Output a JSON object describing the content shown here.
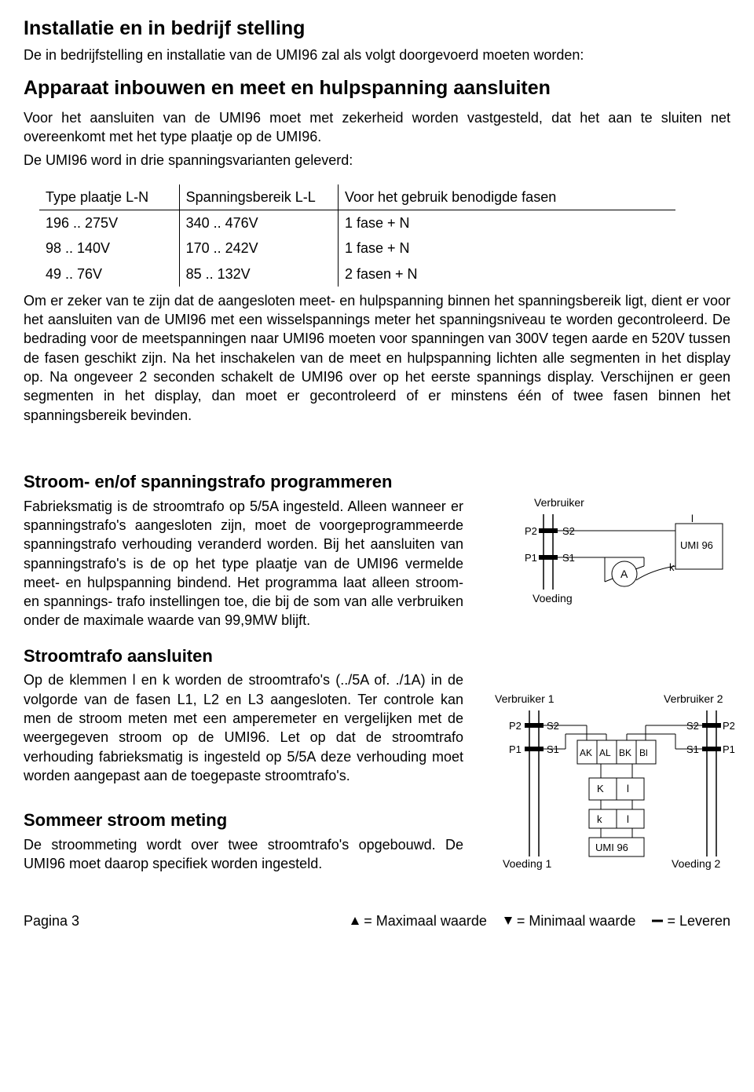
{
  "section1": {
    "title": "Installatie en in bedrijf stelling",
    "intro": "De in bedrijfstelling en installatie van de UMI96 zal als volgt doorgevoerd moeten worden:",
    "subtitle": "Apparaat inbouwen en meet en hulpspanning aansluiten",
    "para1": "Voor het aansluiten van de UMI96 moet met zekerheid worden vastgesteld, dat het aan te sluiten net overeenkomt met het type plaatje op de UMI96.",
    "para2": "De UMI96 word in drie spanningsvarianten geleverd:"
  },
  "table1": {
    "headers": [
      "Type plaatje L-N",
      "Spanningsbereik L-L",
      "Voor het gebruik benodigde fasen"
    ],
    "rows": [
      [
        "196 .. 275V",
        "340 .. 476V",
        "1 fase + N"
      ],
      [
        "98 .. 140V",
        "170 .. 242V",
        "1 fase + N"
      ],
      [
        "49 .. 76V",
        "85 .. 132V",
        "2 fasen + N"
      ]
    ]
  },
  "section1b": {
    "para": "Om er zeker van te zijn dat de aangesloten meet- en hulpspanning binnen het spanningsbereik ligt, dient er voor het aansluiten van de UMI96 met een wisselspannings meter het spanningsniveau te worden gecontroleerd. De bedrading voor de meetspanningen naar UMI96 moeten voor spanningen van 300V tegen aarde en 520V tussen de fasen geschikt zijn. Na het inschakelen van de meet en hulpspanning lichten alle segmenten in het display op. Na ongeveer 2 seconden schakelt de UMI96 over op het eerste spannings display. Verschijnen er geen segmenten in het display, dan moet er gecontroleerd of er minstens één of twee fasen  binnen het spanningsbereik bevinden."
  },
  "section2": {
    "title": "Stroom- en/of spanningstrafo programmeren",
    "para": "Fabrieksmatig is de stroomtrafo op 5/5A ingesteld. Alleen wanneer er spanningstrafo's aangesloten zijn, moet de voorgeprogrammeerde spanningstrafo verhouding veranderd worden. Bij het aansluiten van spanningstrafo's is de op het type plaatje van de UMI96 vermelde meet- en hulpspanning bindend. Het programma laat alleen stroom- en spannings- trafo instellingen toe, die bij de som van alle verbruiken onder de maximale waarde van 99,9MW blijft."
  },
  "section3": {
    "title": "Stroomtrafo aansluiten",
    "para": "Op de klemmen l en k  worden de stroomtrafo's (../5A of. ./1A) in de  volgorde van de fasen  L1, L2 en L3 aangesloten. Ter controle kan men de stroom meten met een amperemeter en vergelijken met de weergegeven stroom op de UMI96. Let op dat de stroomtrafo verhouding fabrieksmatig is ingesteld op 5/5A deze verhouding moet worden aangepast aan de toegepaste stroomtrafo's."
  },
  "section4": {
    "title": "Sommeer stroom meting",
    "para": "De stroommeting wordt over twee stroomtrafo's opgebouwd. De UMI96 moet daarop specifiek worden ingesteld."
  },
  "diagram1": {
    "labels": {
      "verbruiker": "Verbruiker",
      "voeding": "Voeding",
      "p1": "P1",
      "p2": "P2",
      "s1": "S1",
      "s2": "S2",
      "a": "A",
      "l": "l",
      "k": "k",
      "umi": "UMI 96"
    }
  },
  "diagram2": {
    "labels": {
      "verbruiker1": "Verbruiker 1",
      "verbruiker2": "Verbruiker 2",
      "voeding1": "Voeding 1",
      "voeding2": "Voeding 2",
      "p1": "P1",
      "p2": "P2",
      "s1": "S1",
      "s2": "S2",
      "ak": "AK",
      "al": "AL",
      "bk": "BK",
      "bl": "Bl",
      "K": "K",
      "l": "l",
      "k": "k",
      "umi": "UMI 96"
    }
  },
  "footer": {
    "page": "Pagina 3",
    "max": "= Maximaal waarde",
    "min": "= Minimaal waarde",
    "lev": "= Leveren"
  }
}
